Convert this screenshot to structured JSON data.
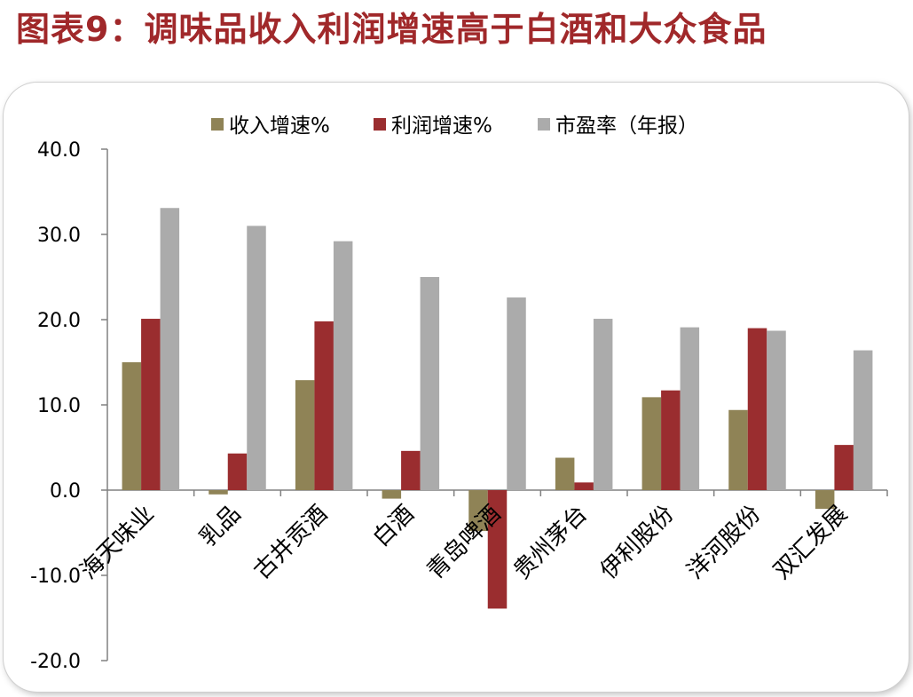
{
  "page_title": "图表9：调味品收入利润增速高于白酒和大众食品",
  "colors": {
    "title": "#a0282a",
    "revenue": "#8f8356",
    "profit": "#9a2d2f",
    "pe": "#ababab"
  },
  "chart_data": {
    "type": "bar",
    "title": "",
    "xlabel": "",
    "ylabel": "",
    "ylim": [
      -20,
      40
    ],
    "yticks": [
      "40.0",
      "30.0",
      "20.0",
      "10.0",
      "0.0",
      "-10.0",
      "-20.0"
    ],
    "ytick_values": [
      40,
      30,
      20,
      10,
      0,
      -10,
      -20
    ],
    "grid": false,
    "legend_position": "top",
    "categories": [
      "海天味业",
      "乳品",
      "古井贡酒",
      "白酒",
      "青岛啤酒",
      "贵州茅台",
      "伊利股份",
      "洋河股份",
      "双汇发展"
    ],
    "series": [
      {
        "name": "收入增速%",
        "color": "#8f8356",
        "values": [
          15.0,
          -0.5,
          12.9,
          -1.0,
          -4.8,
          3.8,
          10.9,
          9.4,
          -2.2
        ]
      },
      {
        "name": "利润增速%",
        "color": "#9a2d2f",
        "values": [
          20.1,
          4.3,
          19.8,
          4.6,
          -13.9,
          0.9,
          11.7,
          19.0,
          5.3
        ]
      },
      {
        "name": "市盈率（年报）",
        "color": "#ababab",
        "values": [
          33.1,
          31.0,
          29.2,
          25.0,
          22.6,
          20.1,
          19.1,
          18.7,
          16.4
        ]
      }
    ]
  }
}
